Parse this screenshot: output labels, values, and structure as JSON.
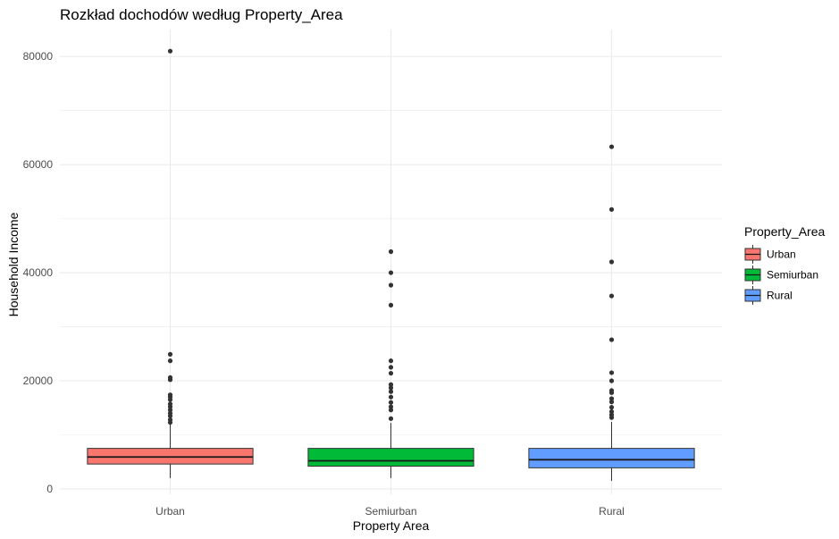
{
  "chart_data": {
    "type": "boxplot",
    "title": "Rozkład dochodów według Property_Area",
    "xlabel": "Property Area",
    "ylabel": "Household Income",
    "ylim": [
      -1000,
      85000
    ],
    "yticks": [
      0,
      20000,
      40000,
      60000,
      80000
    ],
    "grid": true,
    "legend": {
      "title": "Property_Area",
      "position": "right"
    },
    "categories": [
      "Urban",
      "Semiurban",
      "Rural"
    ],
    "series": [
      {
        "name": "Urban",
        "color": "#F8766D",
        "whisker_low": 2000,
        "q1": 4600,
        "median": 5900,
        "q3": 7500,
        "whisker_high": 11900,
        "outliers": [
          12300,
          12800,
          13500,
          14000,
          14600,
          15200,
          15700,
          16500,
          17000,
          17400,
          20200,
          20600,
          23700,
          24900,
          81000
        ]
      },
      {
        "name": "Semiurban",
        "color": "#00BA38",
        "whisker_low": 2000,
        "q1": 4200,
        "median": 5200,
        "q3": 7500,
        "whisker_high": 12200,
        "outliers": [
          13000,
          14600,
          15200,
          16000,
          17000,
          18000,
          18700,
          19300,
          21400,
          22500,
          23700,
          34000,
          37700,
          40000,
          43900
        ]
      },
      {
        "name": "Rural",
        "color": "#619CFF",
        "whisker_low": 1500,
        "q1": 3900,
        "median": 5400,
        "q3": 7500,
        "whisker_high": 12400,
        "outliers": [
          13200,
          13700,
          14300,
          15100,
          16100,
          16700,
          17800,
          18200,
          20000,
          21500,
          27600,
          35700,
          42000,
          51700,
          63300
        ]
      }
    ]
  }
}
